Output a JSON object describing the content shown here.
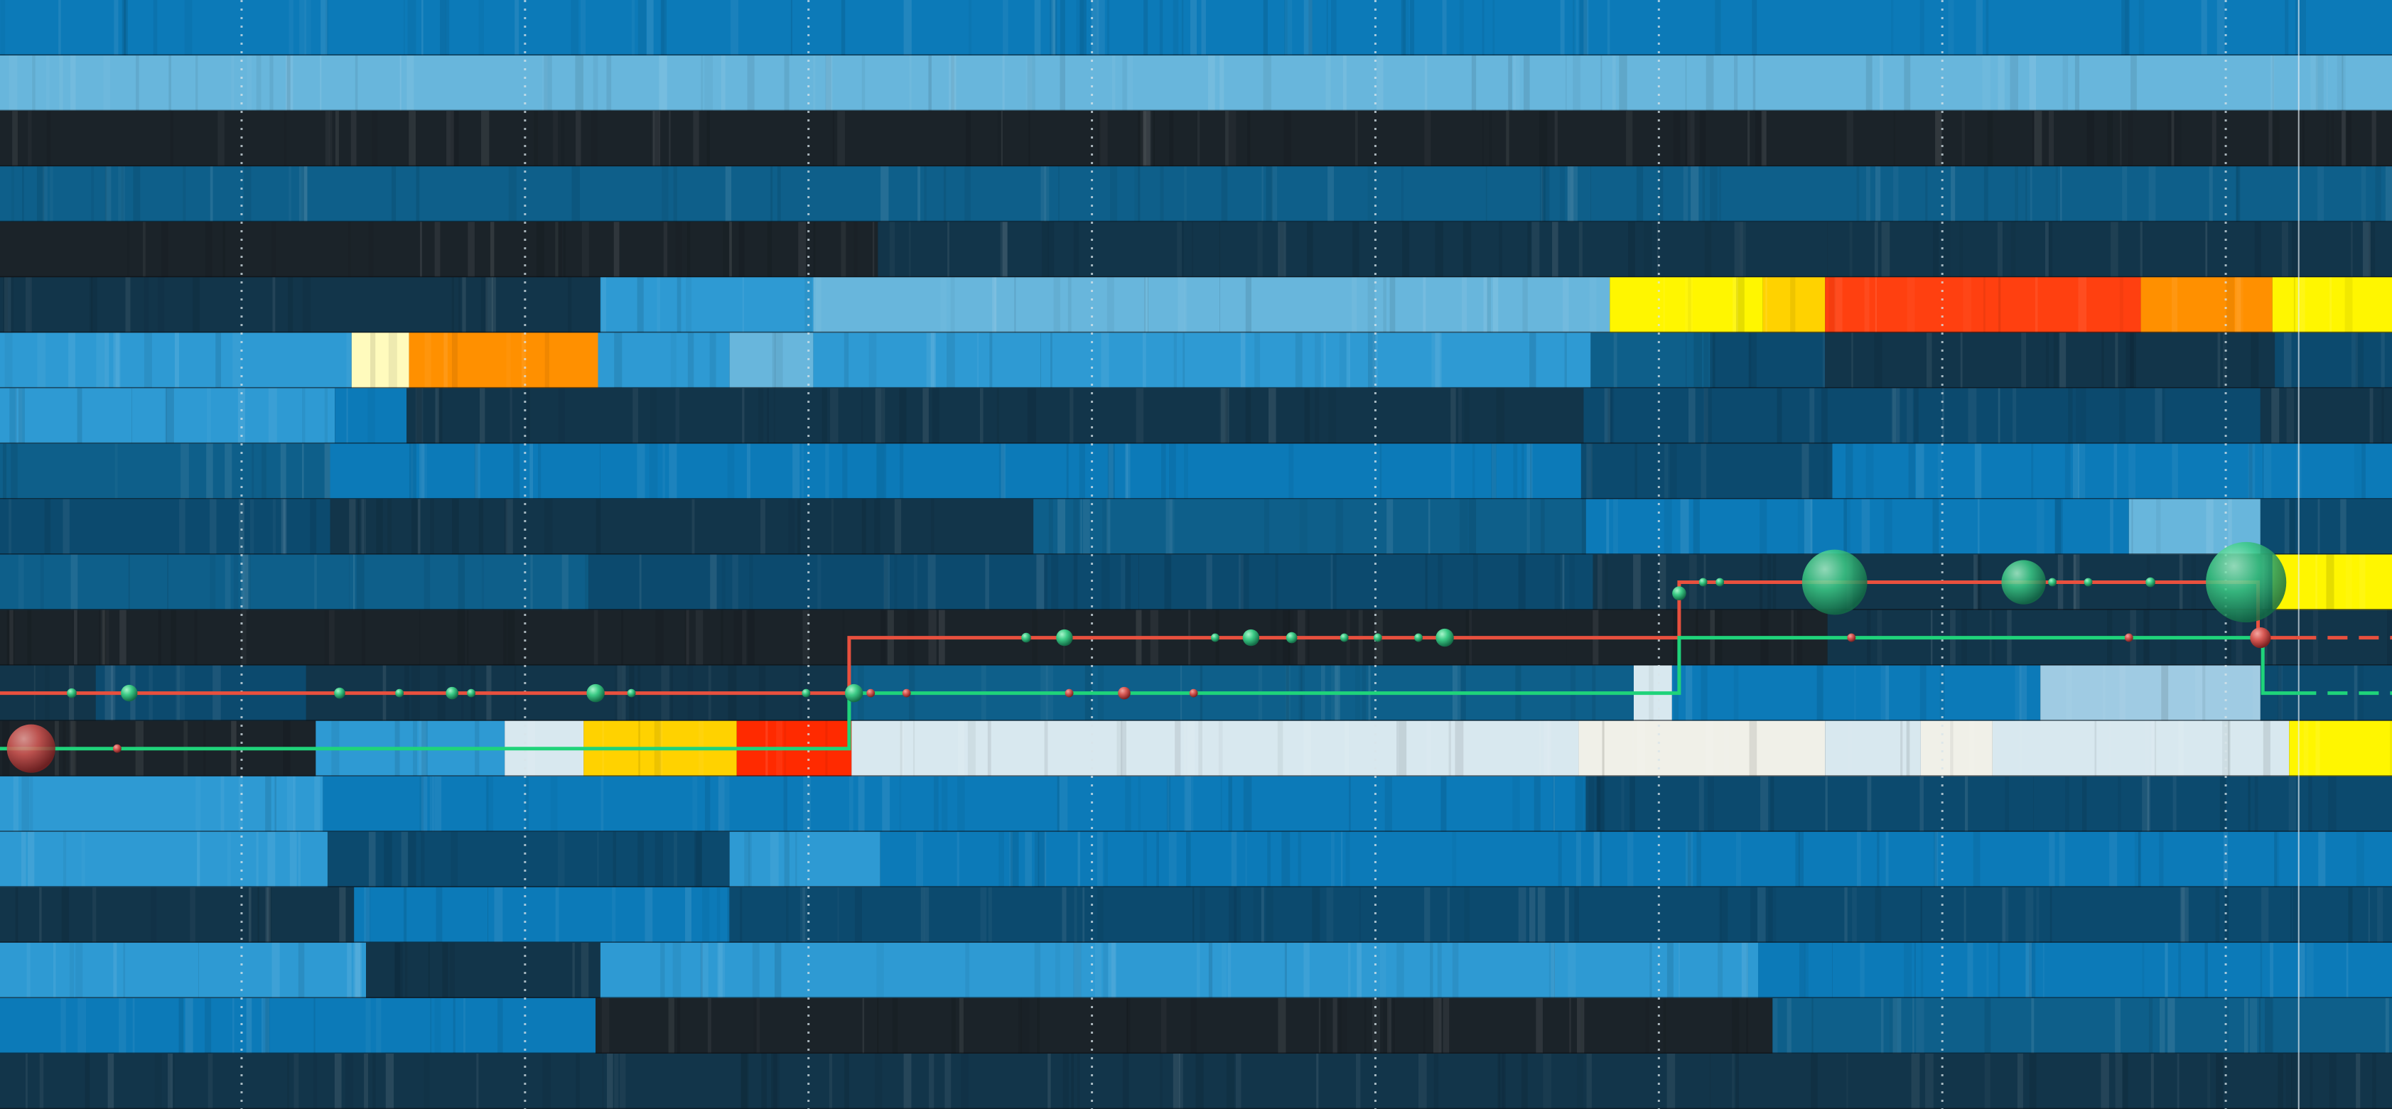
{
  "chart_data": {
    "type": "heatmap",
    "title": "",
    "xlabel": "",
    "ylabel": "",
    "legend": "none",
    "grid": "vertical dotted",
    "x_range": [
      0,
      100
    ],
    "x_grid_values": [
      10.1,
      21.95,
      33.8,
      45.65,
      57.5,
      69.35,
      81.2,
      93.05
    ],
    "now_marker_x": 96.1,
    "palette": {
      "n": "#1b2329",
      "k": "#12354a",
      "d": "#0c4a6e",
      "m": "#0e5f8a",
      "b": "#0c7ab8",
      "l": "#2e9ad3",
      "s": "#68b6dc",
      "p": "#9fcbe3",
      "w": "#d8e8ef",
      "c": "#f0f0e8",
      "y": "#fff600",
      "a": "#ffd200",
      "o": "#ff9000",
      "r": "#ff4010",
      "e": "#ff2a00",
      "i": "#fffbbd"
    },
    "rows": [
      [
        [
          0,
          100,
          "b"
        ]
      ],
      [
        [
          0,
          100,
          "s"
        ]
      ],
      [
        [
          0,
          100,
          "n"
        ]
      ],
      [
        [
          0,
          66.5,
          "m"
        ],
        [
          66.5,
          100,
          "m"
        ]
      ],
      [
        [
          0,
          36.7,
          "n"
        ],
        [
          36.7,
          51,
          "k"
        ],
        [
          51,
          66,
          "k"
        ],
        [
          66,
          76.4,
          "k"
        ],
        [
          76.4,
          100,
          "k"
        ]
      ],
      [
        [
          0,
          25.1,
          "k"
        ],
        [
          25.1,
          34,
          "l"
        ],
        [
          34,
          48,
          "s"
        ],
        [
          48,
          51,
          "s"
        ],
        [
          51,
          67.3,
          "s"
        ],
        [
          67.3,
          73.7,
          "y"
        ],
        [
          73.7,
          76.3,
          "a"
        ],
        [
          76.3,
          89.5,
          "r"
        ],
        [
          89.5,
          95,
          "o"
        ],
        [
          95,
          100,
          "y"
        ]
      ],
      [
        [
          0,
          14.7,
          "l"
        ],
        [
          14.7,
          17.1,
          "i"
        ],
        [
          17.1,
          25,
          "o"
        ],
        [
          25,
          30.5,
          "l"
        ],
        [
          30.5,
          34,
          "s"
        ],
        [
          34,
          43.5,
          "l"
        ],
        [
          43.5,
          66.5,
          "l"
        ],
        [
          66.5,
          71.5,
          "m"
        ],
        [
          71.5,
          76.3,
          "d"
        ],
        [
          76.3,
          95.1,
          "k"
        ],
        [
          95.1,
          100,
          "d"
        ]
      ],
      [
        [
          0,
          5.5,
          "l"
        ],
        [
          5.5,
          14,
          "l"
        ],
        [
          14,
          17,
          "b"
        ],
        [
          17,
          66.2,
          "k"
        ],
        [
          66.2,
          94.5,
          "d"
        ],
        [
          94.5,
          100,
          "k"
        ]
      ],
      [
        [
          0,
          13.8,
          "m"
        ],
        [
          13.8,
          25.1,
          "b"
        ],
        [
          25.1,
          66.1,
          "b"
        ],
        [
          66.1,
          76.6,
          "d"
        ],
        [
          76.6,
          94.6,
          "b"
        ],
        [
          94.6,
          100,
          "b"
        ]
      ],
      [
        [
          0,
          13.8,
          "d"
        ],
        [
          13.8,
          43.2,
          "k"
        ],
        [
          43.2,
          66.3,
          "m"
        ],
        [
          66.3,
          89,
          "b"
        ],
        [
          89,
          94.5,
          "s"
        ],
        [
          94.5,
          100,
          "d"
        ]
      ],
      [
        [
          0,
          14.6,
          "m"
        ],
        [
          14.6,
          24.6,
          "m"
        ],
        [
          24.6,
          47.6,
          "d"
        ],
        [
          47.6,
          66.6,
          "d"
        ],
        [
          66.6,
          95,
          "k"
        ],
        [
          95,
          100,
          "y"
        ]
      ],
      [
        [
          0,
          65.5,
          "n"
        ],
        [
          65.5,
          76.4,
          "n"
        ],
        [
          76.4,
          100,
          "k"
        ]
      ],
      [
        [
          0,
          4,
          "k"
        ],
        [
          4,
          12.8,
          "d"
        ],
        [
          12.8,
          35.5,
          "k"
        ],
        [
          35.5,
          68.3,
          "m"
        ],
        [
          68.3,
          69.9,
          "w"
        ],
        [
          69.9,
          85.3,
          "b"
        ],
        [
          85.3,
          94.5,
          "p"
        ],
        [
          94.5,
          100,
          "d"
        ]
      ],
      [
        [
          0,
          13.2,
          "n"
        ],
        [
          13.2,
          21.1,
          "l"
        ],
        [
          21.1,
          24.4,
          "w"
        ],
        [
          24.4,
          30.8,
          "a"
        ],
        [
          30.8,
          35.6,
          "e"
        ],
        [
          35.6,
          66,
          "w"
        ],
        [
          66,
          76.3,
          "c"
        ],
        [
          76.3,
          80.3,
          "w"
        ],
        [
          80.3,
          83.3,
          "c"
        ],
        [
          83.3,
          95.7,
          "w"
        ],
        [
          95.7,
          100,
          "y"
        ]
      ],
      [
        [
          0,
          13.5,
          "l"
        ],
        [
          13.5,
          25,
          "b"
        ],
        [
          25,
          66.3,
          "b"
        ],
        [
          66.3,
          85,
          "d"
        ],
        [
          85,
          100,
          "d"
        ]
      ],
      [
        [
          0,
          13.7,
          "l"
        ],
        [
          13.7,
          30.5,
          "d"
        ],
        [
          30.5,
          36.8,
          "l"
        ],
        [
          36.8,
          100,
          "b"
        ]
      ],
      [
        [
          0,
          14.8,
          "k"
        ],
        [
          14.8,
          20.4,
          "b"
        ],
        [
          20.4,
          30.5,
          "b"
        ],
        [
          30.5,
          100,
          "d"
        ]
      ],
      [
        [
          0,
          8.3,
          "l"
        ],
        [
          8.3,
          15.3,
          "l"
        ],
        [
          15.3,
          25.1,
          "k"
        ],
        [
          25.1,
          65,
          "l"
        ],
        [
          65,
          73.5,
          "l"
        ],
        [
          73.5,
          76.6,
          "b"
        ],
        [
          76.6,
          100,
          "b"
        ]
      ],
      [
        [
          0,
          24.9,
          "b"
        ],
        [
          24.9,
          74.1,
          "n"
        ],
        [
          74.1,
          100,
          "m"
        ]
      ],
      [
        [
          0,
          25.2,
          "k"
        ],
        [
          25.2,
          71.5,
          "k"
        ],
        [
          71.5,
          100,
          "k"
        ]
      ]
    ],
    "lines": [
      {
        "name": "red",
        "color": "#e8503e",
        "path": [
          [
            0,
            12.5
          ],
          [
            35.5,
            12.5
          ],
          [
            35.5,
            11.5
          ],
          [
            70.2,
            11.5
          ],
          [
            70.2,
            10.5
          ],
          [
            94.4,
            10.5
          ],
          [
            94.4,
            11.5
          ],
          [
            96,
            11.5
          ]
        ],
        "dashed_after": 96,
        "dashed_end": [
          100,
          11.5
        ]
      },
      {
        "name": "green",
        "color": "#1fd37a",
        "path": [
          [
            0,
            13.5
          ],
          [
            35.5,
            13.5
          ],
          [
            35.5,
            12.5
          ],
          [
            70.2,
            12.5
          ],
          [
            70.2,
            11.5
          ],
          [
            94.6,
            11.5
          ],
          [
            94.6,
            12.5
          ],
          [
            96,
            12.5
          ]
        ],
        "dashed_after": 96,
        "dashed_end": [
          100,
          12.5
        ]
      }
    ],
    "events": [
      {
        "x": 1.3,
        "row": 13.5,
        "size": 3.5,
        "color": "red"
      },
      {
        "x": 4.9,
        "row": 13.5,
        "size": 0.6,
        "color": "red"
      },
      {
        "x": 3.0,
        "row": 12.5,
        "size": 0.7,
        "color": "green"
      },
      {
        "x": 5.4,
        "row": 12.5,
        "size": 1.2,
        "color": "green"
      },
      {
        "x": 14.2,
        "row": 12.5,
        "size": 0.8,
        "color": "green"
      },
      {
        "x": 16.7,
        "row": 12.5,
        "size": 0.6,
        "color": "green"
      },
      {
        "x": 18.9,
        "row": 12.5,
        "size": 0.9,
        "color": "green"
      },
      {
        "x": 19.7,
        "row": 12.5,
        "size": 0.6,
        "color": "green"
      },
      {
        "x": 24.9,
        "row": 12.5,
        "size": 1.3,
        "color": "green"
      },
      {
        "x": 26.4,
        "row": 12.5,
        "size": 0.6,
        "color": "green"
      },
      {
        "x": 33.7,
        "row": 12.5,
        "size": 0.6,
        "color": "green"
      },
      {
        "x": 35.7,
        "row": 12.5,
        "size": 1.3,
        "color": "green"
      },
      {
        "x": 36.4,
        "row": 12.5,
        "size": 0.6,
        "color": "red"
      },
      {
        "x": 37.9,
        "row": 12.5,
        "size": 0.6,
        "color": "red"
      },
      {
        "x": 44.7,
        "row": 12.5,
        "size": 0.6,
        "color": "red"
      },
      {
        "x": 47.0,
        "row": 12.5,
        "size": 0.9,
        "color": "red"
      },
      {
        "x": 49.9,
        "row": 12.5,
        "size": 0.6,
        "color": "red"
      },
      {
        "x": 42.9,
        "row": 11.5,
        "size": 0.7,
        "color": "green"
      },
      {
        "x": 44.5,
        "row": 11.5,
        "size": 1.2,
        "color": "green"
      },
      {
        "x": 50.8,
        "row": 11.5,
        "size": 0.6,
        "color": "green"
      },
      {
        "x": 52.3,
        "row": 11.5,
        "size": 1.2,
        "color": "green"
      },
      {
        "x": 54.0,
        "row": 11.5,
        "size": 0.8,
        "color": "green"
      },
      {
        "x": 56.2,
        "row": 11.5,
        "size": 0.6,
        "color": "green"
      },
      {
        "x": 57.6,
        "row": 11.5,
        "size": 0.6,
        "color": "green"
      },
      {
        "x": 59.3,
        "row": 11.5,
        "size": 0.6,
        "color": "green"
      },
      {
        "x": 60.4,
        "row": 11.5,
        "size": 1.3,
        "color": "green"
      },
      {
        "x": 70.2,
        "row": 10.7,
        "size": 1.0,
        "color": "green"
      },
      {
        "x": 71.2,
        "row": 10.5,
        "size": 0.6,
        "color": "green"
      },
      {
        "x": 71.9,
        "row": 10.5,
        "size": 0.6,
        "color": "green"
      },
      {
        "x": 76.7,
        "row": 10.5,
        "size": 4.7,
        "color": "green"
      },
      {
        "x": 84.6,
        "row": 10.5,
        "size": 3.2,
        "color": "green"
      },
      {
        "x": 85.8,
        "row": 10.5,
        "size": 0.6,
        "color": "green"
      },
      {
        "x": 87.3,
        "row": 10.5,
        "size": 0.6,
        "color": "green"
      },
      {
        "x": 89.9,
        "row": 10.5,
        "size": 0.7,
        "color": "green"
      },
      {
        "x": 93.9,
        "row": 10.5,
        "size": 5.8,
        "color": "green"
      },
      {
        "x": 77.4,
        "row": 11.5,
        "size": 0.6,
        "color": "red"
      },
      {
        "x": 89.0,
        "row": 11.5,
        "size": 0.6,
        "color": "red"
      },
      {
        "x": 94.5,
        "row": 11.5,
        "size": 1.5,
        "color": "red"
      }
    ]
  },
  "colors": {
    "grid_line": "#d8e4ea",
    "now_line": "#e6eef2",
    "row_separator": "#0a0e12",
    "red_marker": "#e8503e",
    "green_marker": "#22cc82"
  }
}
